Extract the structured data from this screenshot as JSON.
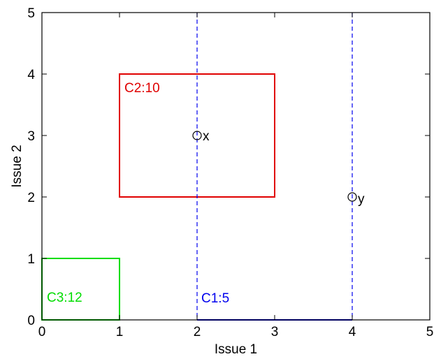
{
  "chart_data": {
    "type": "scatter",
    "title": "",
    "xlabel": "Issue 1",
    "ylabel": "Issue 2",
    "xlim": [
      0,
      5
    ],
    "ylim": [
      0,
      5
    ],
    "xticks": [
      "0",
      "1",
      "2",
      "3",
      "4",
      "5"
    ],
    "yticks": [
      "0",
      "1",
      "2",
      "3",
      "4",
      "5"
    ],
    "grid": false,
    "legend": "none",
    "points": [
      {
        "label": "x",
        "x": 2,
        "y": 3
      },
      {
        "label": "y",
        "x": 4,
        "y": 2
      }
    ],
    "regions": [
      {
        "label": "C2:10",
        "x": [
          1,
          3
        ],
        "y": [
          2,
          4
        ],
        "color": "#e00000",
        "style": "solid"
      },
      {
        "label": "C3:12",
        "x": [
          0,
          1
        ],
        "y": [
          0,
          1
        ],
        "color": "#00dd00",
        "style": "solid"
      },
      {
        "label": "C1:5",
        "x": [
          2,
          4
        ],
        "y": [
          0,
          5
        ],
        "color": "#0000ee",
        "style": "dashed"
      }
    ]
  }
}
